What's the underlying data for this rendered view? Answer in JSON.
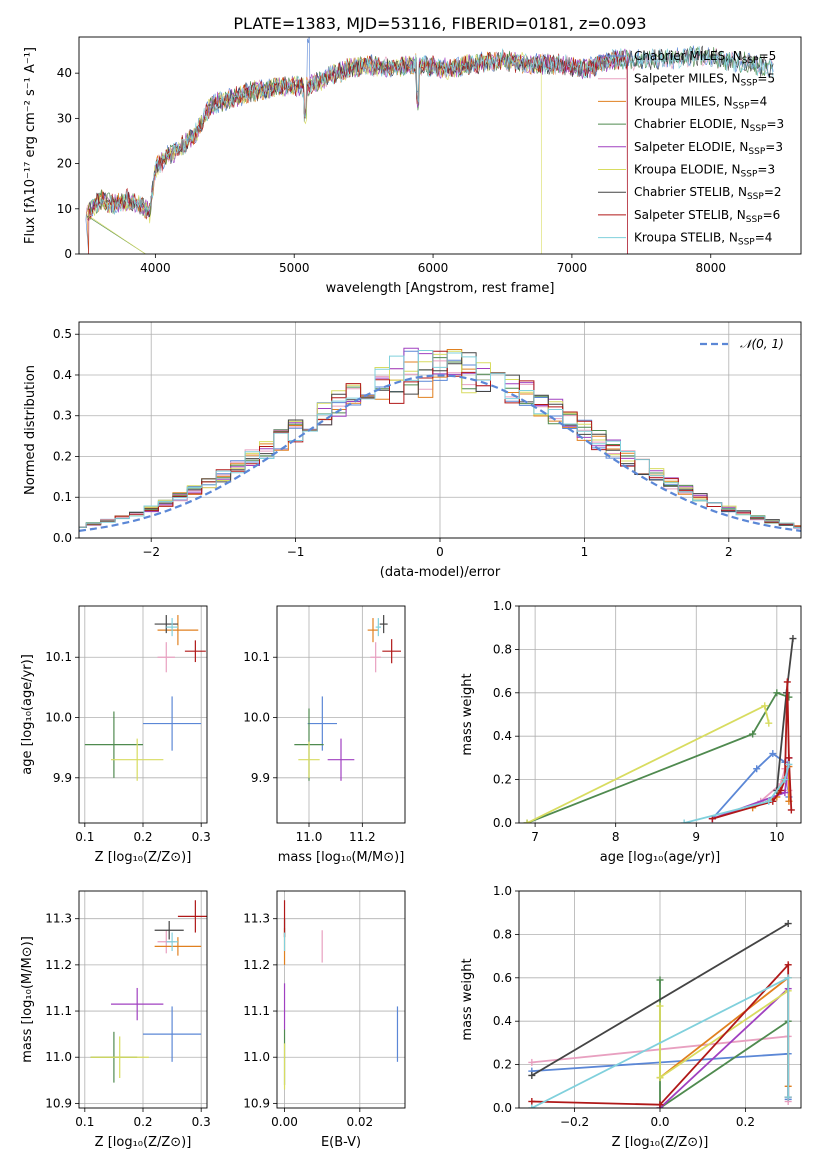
{
  "title": "PLATE=1383, MJD=53116, FIBERID=0181, z=0.093",
  "colors": {
    "chabrier_miles": "#5b87d6",
    "salpeter_miles": "#e8a0c0",
    "kroupa_miles": "#e08020",
    "chabrier_elodie": "#4f8a4f",
    "salpeter_elodie": "#a040c0",
    "kroupa_elodie": "#d8dc60",
    "chabrier_stelib": "#444444",
    "salpeter_stelib": "#b01818",
    "kroupa_stelib": "#80d0dc",
    "normal": "#5b87d6"
  },
  "chart_data": [
    {
      "id": "spectrum",
      "type": "line",
      "xlabel": "wavelength [Angstrom, rest frame]",
      "ylabel": "Flux [fλ10⁻¹⁷ erg cm⁻² s⁻¹ A⁻¹]",
      "xlim": [
        3450,
        8650
      ],
      "ylim": [
        0,
        48
      ],
      "xticks": [
        "4000",
        "5000",
        "6000",
        "7000",
        "8000"
      ],
      "yticks": [
        "0",
        "10",
        "20",
        "30",
        "40"
      ],
      "grid": false,
      "legend_position": "top-right",
      "envelope": [
        [
          3500,
          9
        ],
        [
          3600,
          12
        ],
        [
          3700,
          11
        ],
        [
          3800,
          12
        ],
        [
          3900,
          11
        ],
        [
          3960,
          9
        ],
        [
          4000,
          19
        ],
        [
          4100,
          22
        ],
        [
          4200,
          24
        ],
        [
          4300,
          27
        ],
        [
          4400,
          33
        ],
        [
          4500,
          34
        ],
        [
          4700,
          36
        ],
        [
          4900,
          37
        ],
        [
          5100,
          37
        ],
        [
          5300,
          40
        ],
        [
          5500,
          42
        ],
        [
          5700,
          41
        ],
        [
          5900,
          42
        ],
        [
          6100,
          41
        ],
        [
          6300,
          42
        ],
        [
          6500,
          43
        ],
        [
          6700,
          42
        ],
        [
          6900,
          42
        ],
        [
          7100,
          41
        ],
        [
          7300,
          43
        ],
        [
          7450,
          43
        ],
        [
          7700,
          43
        ],
        [
          7900,
          44
        ],
        [
          8100,
          43
        ],
        [
          8300,
          42
        ],
        [
          8450,
          41
        ]
      ],
      "series": [
        {
          "name": "Chabrier MILES, N_SSP=5",
          "color_key": "chabrier_miles"
        },
        {
          "name": "Salpeter MILES, N_SSP=5",
          "color_key": "salpeter_miles"
        },
        {
          "name": "Kroupa MILES, N_SSP=4",
          "color_key": "kroupa_miles"
        },
        {
          "name": "Chabrier ELODIE, N_SSP=3",
          "color_key": "chabrier_elodie"
        },
        {
          "name": "Salpeter ELODIE, N_SSP=3",
          "color_key": "salpeter_elodie"
        },
        {
          "name": "Kroupa ELODIE, N_SSP=3",
          "color_key": "kroupa_elodie"
        },
        {
          "name": "Chabrier STELIB, N_SSP=2",
          "color_key": "chabrier_stelib"
        },
        {
          "name": "Salpeter STELIB, N_SSP=6",
          "color_key": "salpeter_stelib"
        },
        {
          "name": "Kroupa STELIB, N_SSP=4",
          "color_key": "kroupa_stelib"
        }
      ],
      "legend": [
        {
          "pre": "Chabrier MILES, N",
          "sub": "SSP",
          "post": "=5",
          "color_key": "chabrier_miles"
        },
        {
          "pre": "Salpeter MILES, N",
          "sub": "SSP",
          "post": "=5",
          "color_key": "salpeter_miles"
        },
        {
          "pre": "Kroupa MILES, N",
          "sub": "SSP",
          "post": "=4",
          "color_key": "kroupa_miles"
        },
        {
          "pre": "Chabrier ELODIE, N",
          "sub": "SSP",
          "post": "=3",
          "color_key": "chabrier_elodie"
        },
        {
          "pre": "Salpeter ELODIE, N",
          "sub": "SSP",
          "post": "=3",
          "color_key": "salpeter_elodie"
        },
        {
          "pre": "Kroupa ELODIE, N",
          "sub": "SSP",
          "post": "=3",
          "color_key": "kroupa_elodie"
        },
        {
          "pre": "Chabrier STELIB, N",
          "sub": "SSP",
          "post": "=2",
          "color_key": "chabrier_stelib"
        },
        {
          "pre": "Salpeter STELIB, N",
          "sub": "SSP",
          "post": "=6",
          "color_key": "salpeter_stelib"
        },
        {
          "pre": "Kroupa STELIB, N",
          "sub": "SSP",
          "post": "=4",
          "color_key": "kroupa_stelib"
        }
      ]
    },
    {
      "id": "residuals",
      "type": "line",
      "xlabel": "(data-model)/error",
      "ylabel": "Normed distribution",
      "xlim": [
        -2.5,
        2.5
      ],
      "ylim": [
        0,
        0.53
      ],
      "xticks": [
        "−2",
        "−1",
        "0",
        "1",
        "2"
      ],
      "yticks": [
        "0.0",
        "0.1",
        "0.2",
        "0.3",
        "0.4",
        "0.5"
      ],
      "grid": true,
      "legend_position": "top-right",
      "legend_label": "𝒩(0, 1)",
      "normal_curve": {
        "mean": 0,
        "sigma": 1
      },
      "bin_width": 0.1
    },
    {
      "id": "age_vs_Z",
      "type": "scatter",
      "xlabel": "Z [log₁₀(Z/Z⊙)]",
      "ylabel": "age  [log₁₀(age/yr)]",
      "xlim": [
        0.09,
        0.31
      ],
      "ylim": [
        9.825,
        10.185
      ],
      "xticks": [
        "0.1",
        "0.2",
        "0.3"
      ],
      "yticks": [
        "9.9",
        "10.0",
        "10.1"
      ],
      "grid": true,
      "points": [
        {
          "x": 0.25,
          "y": 9.99,
          "xerr": 0.05,
          "yerr": 0.045,
          "color_key": "chabrier_miles"
        },
        {
          "x": 0.24,
          "y": 10.1,
          "xerr": 0.015,
          "yerr": 0.025,
          "color_key": "salpeter_miles"
        },
        {
          "x": 0.26,
          "y": 10.145,
          "xerr": 0.035,
          "yerr": 0.025,
          "color_key": "kroupa_miles"
        },
        {
          "x": 0.15,
          "y": 9.955,
          "xerr": 0.05,
          "yerr": 0.055,
          "color_key": "chabrier_elodie"
        },
        {
          "x": 0.19,
          "y": 9.93,
          "xerr": 0.045,
          "yerr": 0.035,
          "color_key": "kroupa_elodie"
        },
        {
          "x": 0.24,
          "y": 10.155,
          "xerr": 0.02,
          "yerr": 0.015,
          "color_key": "chabrier_stelib"
        },
        {
          "x": 0.29,
          "y": 10.11,
          "xerr": 0.018,
          "yerr": 0.018,
          "color_key": "salpeter_stelib"
        },
        {
          "x": 0.25,
          "y": 10.15,
          "xerr": 0.01,
          "yerr": 0.015,
          "color_key": "kroupa_stelib"
        }
      ]
    },
    {
      "id": "age_vs_mass",
      "type": "scatter",
      "xlabel": "mass [log₁₀(M/M⊙)]",
      "ylabel": "",
      "xlim": [
        10.88,
        11.36
      ],
      "ylim": [
        9.825,
        10.185
      ],
      "xticks": [
        "11.0",
        "11.2"
      ],
      "yticks": [
        "9.9",
        "10.0",
        "10.1"
      ],
      "grid": true,
      "points": [
        {
          "x": 11.05,
          "y": 9.99,
          "xerr": 0.055,
          "yerr": 0.045,
          "color_key": "chabrier_miles"
        },
        {
          "x": 11.25,
          "y": 10.1,
          "xerr": 0.02,
          "yerr": 0.025,
          "color_key": "salpeter_miles"
        },
        {
          "x": 11.24,
          "y": 10.145,
          "xerr": 0.02,
          "yerr": 0.02,
          "color_key": "kroupa_miles"
        },
        {
          "x": 11.0,
          "y": 9.955,
          "xerr": 0.055,
          "yerr": 0.06,
          "color_key": "chabrier_elodie"
        },
        {
          "x": 11.12,
          "y": 9.93,
          "xerr": 0.05,
          "yerr": 0.035,
          "color_key": "salpeter_elodie"
        },
        {
          "x": 11.0,
          "y": 9.93,
          "xerr": 0.04,
          "yerr": 0.03,
          "color_key": "kroupa_elodie"
        },
        {
          "x": 11.28,
          "y": 10.155,
          "xerr": 0.015,
          "yerr": 0.015,
          "color_key": "chabrier_stelib"
        },
        {
          "x": 11.31,
          "y": 10.11,
          "xerr": 0.035,
          "yerr": 0.02,
          "color_key": "salpeter_stelib"
        },
        {
          "x": 11.26,
          "y": 10.15,
          "xerr": 0.01,
          "yerr": 0.015,
          "color_key": "kroupa_stelib"
        }
      ]
    },
    {
      "id": "mass_weight_vs_age",
      "type": "line",
      "xlabel": "age  [log₁₀(age/yr)]",
      "ylabel": "mass weight",
      "xlim": [
        6.8,
        10.3
      ],
      "ylim": [
        0,
        1
      ],
      "xticks": [
        "7",
        "8",
        "9",
        "10"
      ],
      "yticks": [
        "0.0",
        "0.2",
        "0.4",
        "0.6",
        "0.8",
        "1.0"
      ],
      "grid": true,
      "series": [
        {
          "color_key": "chabrier_miles",
          "points": [
            [
              9.2,
              0.02
            ],
            [
              9.75,
              0.25
            ],
            [
              9.95,
              0.32
            ],
            [
              10.1,
              0.28
            ],
            [
              10.15,
              0.12
            ]
          ]
        },
        {
          "color_key": "salpeter_miles",
          "points": [
            [
              9.2,
              0.02
            ],
            [
              9.8,
              0.1
            ],
            [
              10.05,
              0.18
            ],
            [
              10.1,
              0.25
            ],
            [
              10.15,
              0.15
            ]
          ]
        },
        {
          "color_key": "kroupa_miles",
          "points": [
            [
              9.7,
              0.07
            ],
            [
              10.0,
              0.12
            ],
            [
              10.15,
              0.26
            ],
            [
              10.15,
              0.1
            ]
          ]
        },
        {
          "color_key": "chabrier_elodie",
          "points": [
            [
              6.9,
              0.0
            ],
            [
              9.7,
              0.41
            ],
            [
              10.0,
              0.6
            ],
            [
              10.15,
              0.58
            ]
          ]
        },
        {
          "color_key": "salpeter_elodie",
          "points": [
            [
              9.2,
              0.02
            ],
            [
              10.1,
              0.14
            ],
            [
              10.15,
              0.3
            ]
          ]
        },
        {
          "color_key": "kroupa_elodie",
          "points": [
            [
              6.9,
              0.0
            ],
            [
              9.85,
              0.54
            ],
            [
              9.9,
              0.46
            ]
          ]
        },
        {
          "color_key": "chabrier_stelib",
          "points": [
            [
              10.0,
              0.15
            ],
            [
              10.12,
              0.6
            ],
            [
              10.2,
              0.85
            ]
          ]
        },
        {
          "color_key": "salpeter_stelib",
          "points": [
            [
              9.2,
              0.02
            ],
            [
              9.95,
              0.1
            ],
            [
              10.05,
              0.15
            ],
            [
              10.1,
              0.2
            ],
            [
              10.13,
              0.65
            ],
            [
              10.15,
              0.3
            ],
            [
              10.18,
              0.06
            ]
          ]
        },
        {
          "color_key": "kroupa_stelib",
          "points": [
            [
              8.85,
              0.0
            ],
            [
              9.9,
              0.1
            ],
            [
              10.1,
              0.2
            ],
            [
              10.15,
              0.27
            ]
          ]
        }
      ]
    },
    {
      "id": "mass_vs_Z",
      "type": "scatter",
      "xlabel": "Z [log₁₀(Z/Z⊙)]",
      "ylabel": "mass [log₁₀(M/M⊙)]",
      "xlim": [
        0.09,
        0.31
      ],
      "ylim": [
        10.89,
        11.36
      ],
      "xticks": [
        "0.1",
        "0.2",
        "0.3"
      ],
      "yticks": [
        "10.9",
        "11.0",
        "11.1",
        "11.2",
        "11.3"
      ],
      "grid": true,
      "points": [
        {
          "x": 0.25,
          "y": 11.05,
          "xerr": 0.05,
          "yerr": 0.06,
          "color_key": "chabrier_miles"
        },
        {
          "x": 0.24,
          "y": 11.25,
          "xerr": 0.015,
          "yerr": 0.025,
          "color_key": "salpeter_miles"
        },
        {
          "x": 0.26,
          "y": 11.24,
          "xerr": 0.04,
          "yerr": 0.02,
          "color_key": "kroupa_miles"
        },
        {
          "x": 0.15,
          "y": 11.0,
          "xerr": 0.04,
          "yerr": 0.055,
          "color_key": "chabrier_elodie"
        },
        {
          "x": 0.19,
          "y": 11.115,
          "xerr": 0.045,
          "yerr": 0.035,
          "color_key": "salpeter_elodie"
        },
        {
          "x": 0.16,
          "y": 11.0,
          "xerr": 0.05,
          "yerr": 0.045,
          "color_key": "kroupa_elodie"
        },
        {
          "x": 0.245,
          "y": 11.275,
          "xerr": 0.025,
          "yerr": 0.02,
          "color_key": "chabrier_stelib"
        },
        {
          "x": 0.29,
          "y": 11.305,
          "xerr": 0.03,
          "yerr": 0.035,
          "color_key": "salpeter_stelib"
        },
        {
          "x": 0.25,
          "y": 11.25,
          "xerr": 0.01,
          "yerr": 0.02,
          "color_key": "kroupa_stelib"
        }
      ]
    },
    {
      "id": "mass_vs_ebv",
      "type": "scatter",
      "xlabel": "E(B-V)",
      "ylabel": "",
      "xlim": [
        -0.002,
        0.032
      ],
      "ylim": [
        10.89,
        11.36
      ],
      "xticks": [
        "0.00",
        "0.02"
      ],
      "yticks": [
        "10.9",
        "11.0",
        "11.1",
        "11.2",
        "11.3"
      ],
      "grid": true,
      "points": [
        {
          "x": 0.03,
          "y": 11.05,
          "xerr": 0,
          "yerr": 0.06,
          "color_key": "chabrier_miles"
        },
        {
          "x": 0.01,
          "y": 11.24,
          "xerr": 0,
          "yerr": 0.035,
          "color_key": "salpeter_miles"
        },
        {
          "x": 0.0,
          "y": 11.24,
          "xerr": 0,
          "yerr": 0.04,
          "color_key": "kroupa_miles"
        },
        {
          "x": 0.0,
          "y": 11.0,
          "xerr": 0,
          "yerr": 0.06,
          "color_key": "chabrier_elodie"
        },
        {
          "x": 0.0,
          "y": 11.11,
          "xerr": 0,
          "yerr": 0.05,
          "color_key": "salpeter_elodie"
        },
        {
          "x": 0.0,
          "y": 10.98,
          "xerr": 0,
          "yerr": 0.05,
          "color_key": "kroupa_elodie"
        },
        {
          "x": 0.0,
          "y": 11.28,
          "xerr": 0,
          "yerr": 0.02,
          "color_key": "chabrier_stelib"
        },
        {
          "x": 0.0,
          "y": 11.3,
          "xerr": 0,
          "yerr": 0.04,
          "color_key": "salpeter_stelib"
        },
        {
          "x": 0.0,
          "y": 11.25,
          "xerr": 0,
          "yerr": 0.02,
          "color_key": "kroupa_stelib"
        }
      ]
    },
    {
      "id": "mass_weight_vs_Z",
      "type": "line",
      "xlabel": "Z [log₁₀(Z/Z⊙)]",
      "ylabel": "mass weight",
      "xlim": [
        -0.33,
        0.33
      ],
      "ylim": [
        0,
        1
      ],
      "xticks": [
        "−0.2",
        "0.0",
        "0.2"
      ],
      "yticks": [
        "0.0",
        "0.2",
        "0.4",
        "0.6",
        "0.8",
        "1.0"
      ],
      "grid": true,
      "series": [
        {
          "color_key": "chabrier_miles",
          "points": [
            [
              -0.3,
              0.17
            ],
            [
              0.3,
              0.25
            ],
            [
              0.3,
              0.04
            ]
          ]
        },
        {
          "color_key": "salpeter_miles",
          "points": [
            [
              -0.3,
              0.21
            ],
            [
              0.3,
              0.33
            ],
            [
              0.3,
              0.03
            ]
          ]
        },
        {
          "color_key": "kroupa_miles",
          "points": [
            [
              0.0,
              0.14
            ],
            [
              0.3,
              0.6
            ],
            [
              0.3,
              0.1
            ]
          ]
        },
        {
          "color_key": "chabrier_elodie",
          "points": [
            [
              0.0,
              0.59
            ],
            [
              0.0,
              0.0
            ],
            [
              0.3,
              0.4
            ]
          ]
        },
        {
          "color_key": "salpeter_elodie",
          "points": [
            [
              0.0,
              0.0
            ],
            [
              0.3,
              0.55
            ]
          ]
        },
        {
          "color_key": "kroupa_elodie",
          "points": [
            [
              0.0,
              0.47
            ],
            [
              0.0,
              0.14
            ],
            [
              0.3,
              0.54
            ]
          ]
        },
        {
          "color_key": "chabrier_stelib",
          "points": [
            [
              -0.3,
              0.15
            ],
            [
              0.3,
              0.85
            ]
          ]
        },
        {
          "color_key": "salpeter_stelib",
          "points": [
            [
              -0.3,
              0.03
            ],
            [
              0.0,
              0.015
            ],
            [
              0.3,
              0.66
            ],
            [
              0.3,
              0.05
            ]
          ]
        },
        {
          "color_key": "kroupa_stelib",
          "points": [
            [
              -0.3,
              0.0
            ],
            [
              0.3,
              0.6
            ],
            [
              0.3,
              0.05
            ]
          ]
        }
      ]
    }
  ]
}
